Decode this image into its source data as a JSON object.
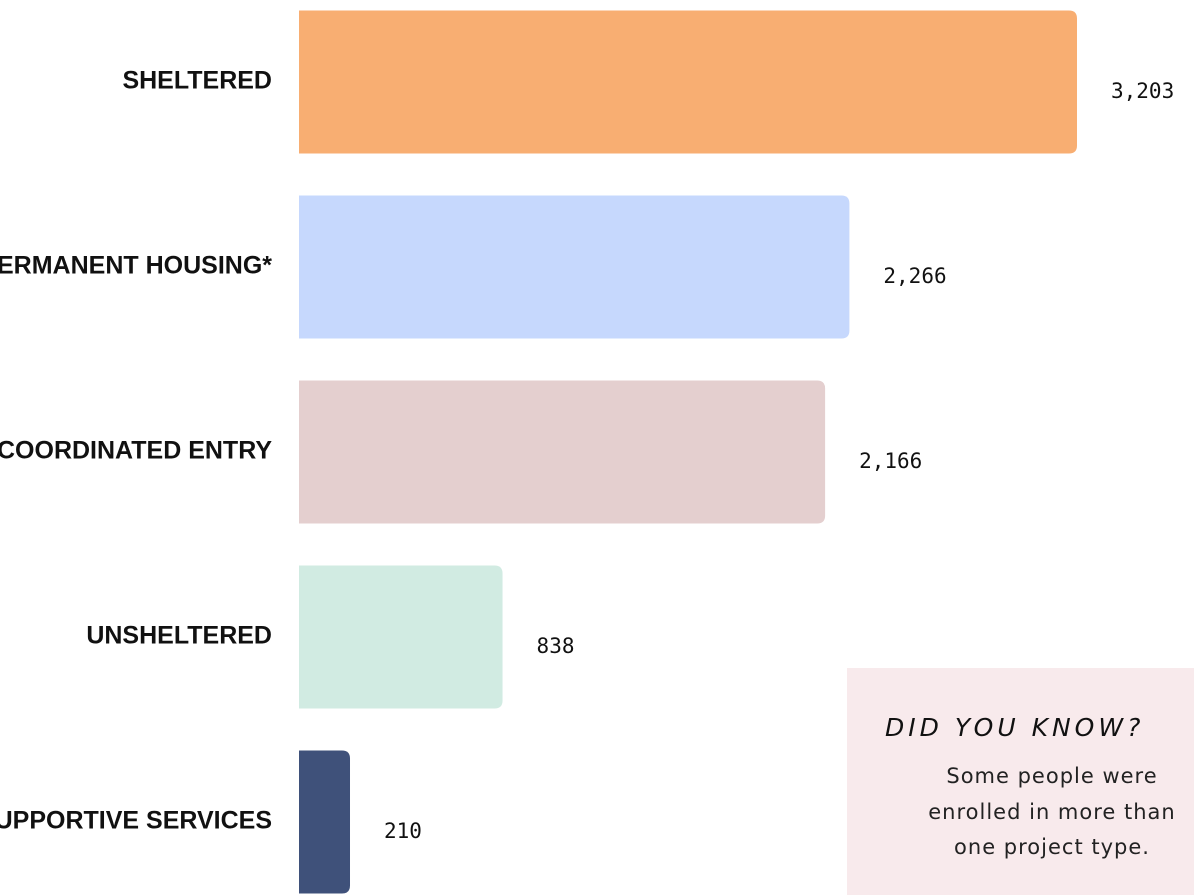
{
  "chart_data": {
    "type": "bar",
    "orientation": "horizontal",
    "categories": [
      "SHELTERED",
      "PERMANENT HOUSING*",
      "COORDINATED ENTRY",
      "UNSHELTERED",
      "SUPPORTIVE SERVICES"
    ],
    "values": [
      3203,
      2266,
      2166,
      838,
      210
    ],
    "value_labels": [
      "3,203",
      "2,266",
      "2,166",
      "838",
      "210"
    ],
    "colors": [
      "#f8ae72",
      "#c6d8fd",
      "#e4cfcf",
      "#d1ebe2",
      "#3f517a"
    ]
  },
  "note": {
    "title": "DID YOU KNOW?",
    "lines": [
      "Some people were",
      "enrolled in more than",
      "one project type."
    ]
  }
}
